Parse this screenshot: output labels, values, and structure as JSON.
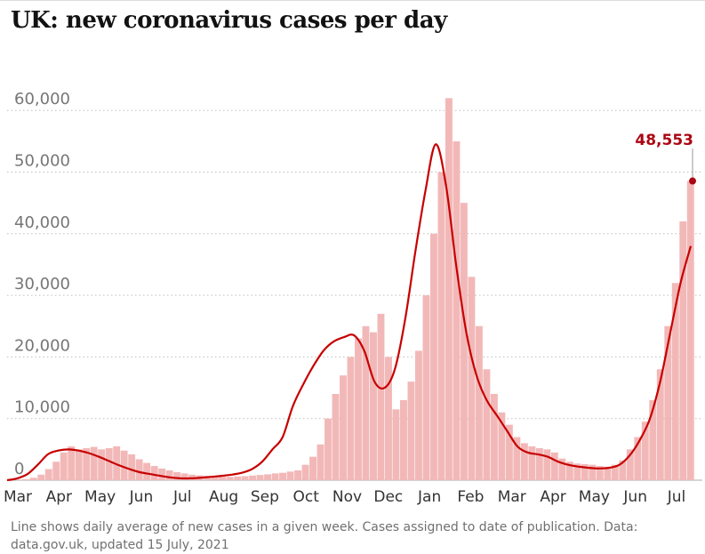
{
  "title": "UK: new coronavirus cases per day",
  "footnote": "Line shows daily average of new cases in a given week. Cases assigned to date of publication. Data: data.gov.uk, updated 15 July, 2021",
  "colors": {
    "bars": "#f2b8b8",
    "line": "#c70000",
    "highlight": "#ab0613",
    "grid": "#bdbdbd",
    "axis_text": "#767676",
    "x_text": "#333333"
  },
  "chart_data": {
    "type": "bar",
    "ylim": [
      0,
      70000
    ],
    "yticks": [
      {
        "value": 0,
        "label": "0"
      },
      {
        "value": 10000,
        "label": "10,000"
      },
      {
        "value": 20000,
        "label": "20,000"
      },
      {
        "value": 30000,
        "label": "30,000"
      },
      {
        "value": 40000,
        "label": "40,000"
      },
      {
        "value": 50000,
        "label": "50,000"
      },
      {
        "value": 60000,
        "label": "60,000"
      }
    ],
    "xticks": [
      "Mar",
      "Apr",
      "May",
      "Jun",
      "Jul",
      "Aug",
      "Sep",
      "Oct",
      "Nov",
      "Dec",
      "Jan",
      "Feb",
      "Mar",
      "Apr",
      "May",
      "Jun",
      "Jul"
    ],
    "annotation": {
      "label": "48,553",
      "value": 48553
    },
    "series": [
      {
        "type": "bar",
        "values": [
          0,
          50,
          150,
          400,
          900,
          1800,
          3000,
          4500,
          5500,
          5000,
          5200,
          5400,
          5000,
          5200,
          5500,
          4800,
          4200,
          3400,
          2800,
          2300,
          1900,
          1600,
          1300,
          1100,
          900,
          800,
          700,
          600,
          550,
          550,
          600,
          650,
          750,
          850,
          950,
          1100,
          1200,
          1400,
          1600,
          2500,
          3800,
          5800,
          10000,
          14000,
          17000,
          20000,
          23000,
          25000,
          24000,
          27000,
          20000,
          11500,
          13000,
          16000,
          21000,
          30000,
          40000,
          50000,
          62000,
          55000,
          45000,
          33000,
          25000,
          18000,
          14000,
          11000,
          9000,
          7000,
          6000,
          5500,
          5200,
          5000,
          4500,
          3500,
          3000,
          2700,
          2600,
          2500,
          2300,
          2200,
          2500,
          3200,
          5000,
          7000,
          9500,
          13000,
          18000,
          25000,
          32000,
          42000,
          48553
        ]
      },
      {
        "type": "line",
        "values": [
          0,
          300,
          1000,
          2500,
          4200,
          4800,
          5000,
          4800,
          4400,
          3800,
          3100,
          2400,
          1800,
          1300,
          1000,
          700,
          450,
          300,
          300,
          400,
          550,
          700,
          900,
          1200,
          1800,
          3000,
          5000,
          7000,
          12000,
          15500,
          18500,
          21000,
          22500,
          23200,
          23500,
          21000,
          16000,
          15000,
          18000,
          26000,
          37000,
          47000,
          54500,
          48000,
          35000,
          24000,
          17000,
          13000,
          10500,
          8000,
          5500,
          4500,
          4200,
          3800,
          3000,
          2500,
          2200,
          2000,
          1900,
          2000,
          2500,
          4000,
          6500,
          10000,
          16000,
          24000,
          32000,
          38000
        ]
      }
    ]
  }
}
